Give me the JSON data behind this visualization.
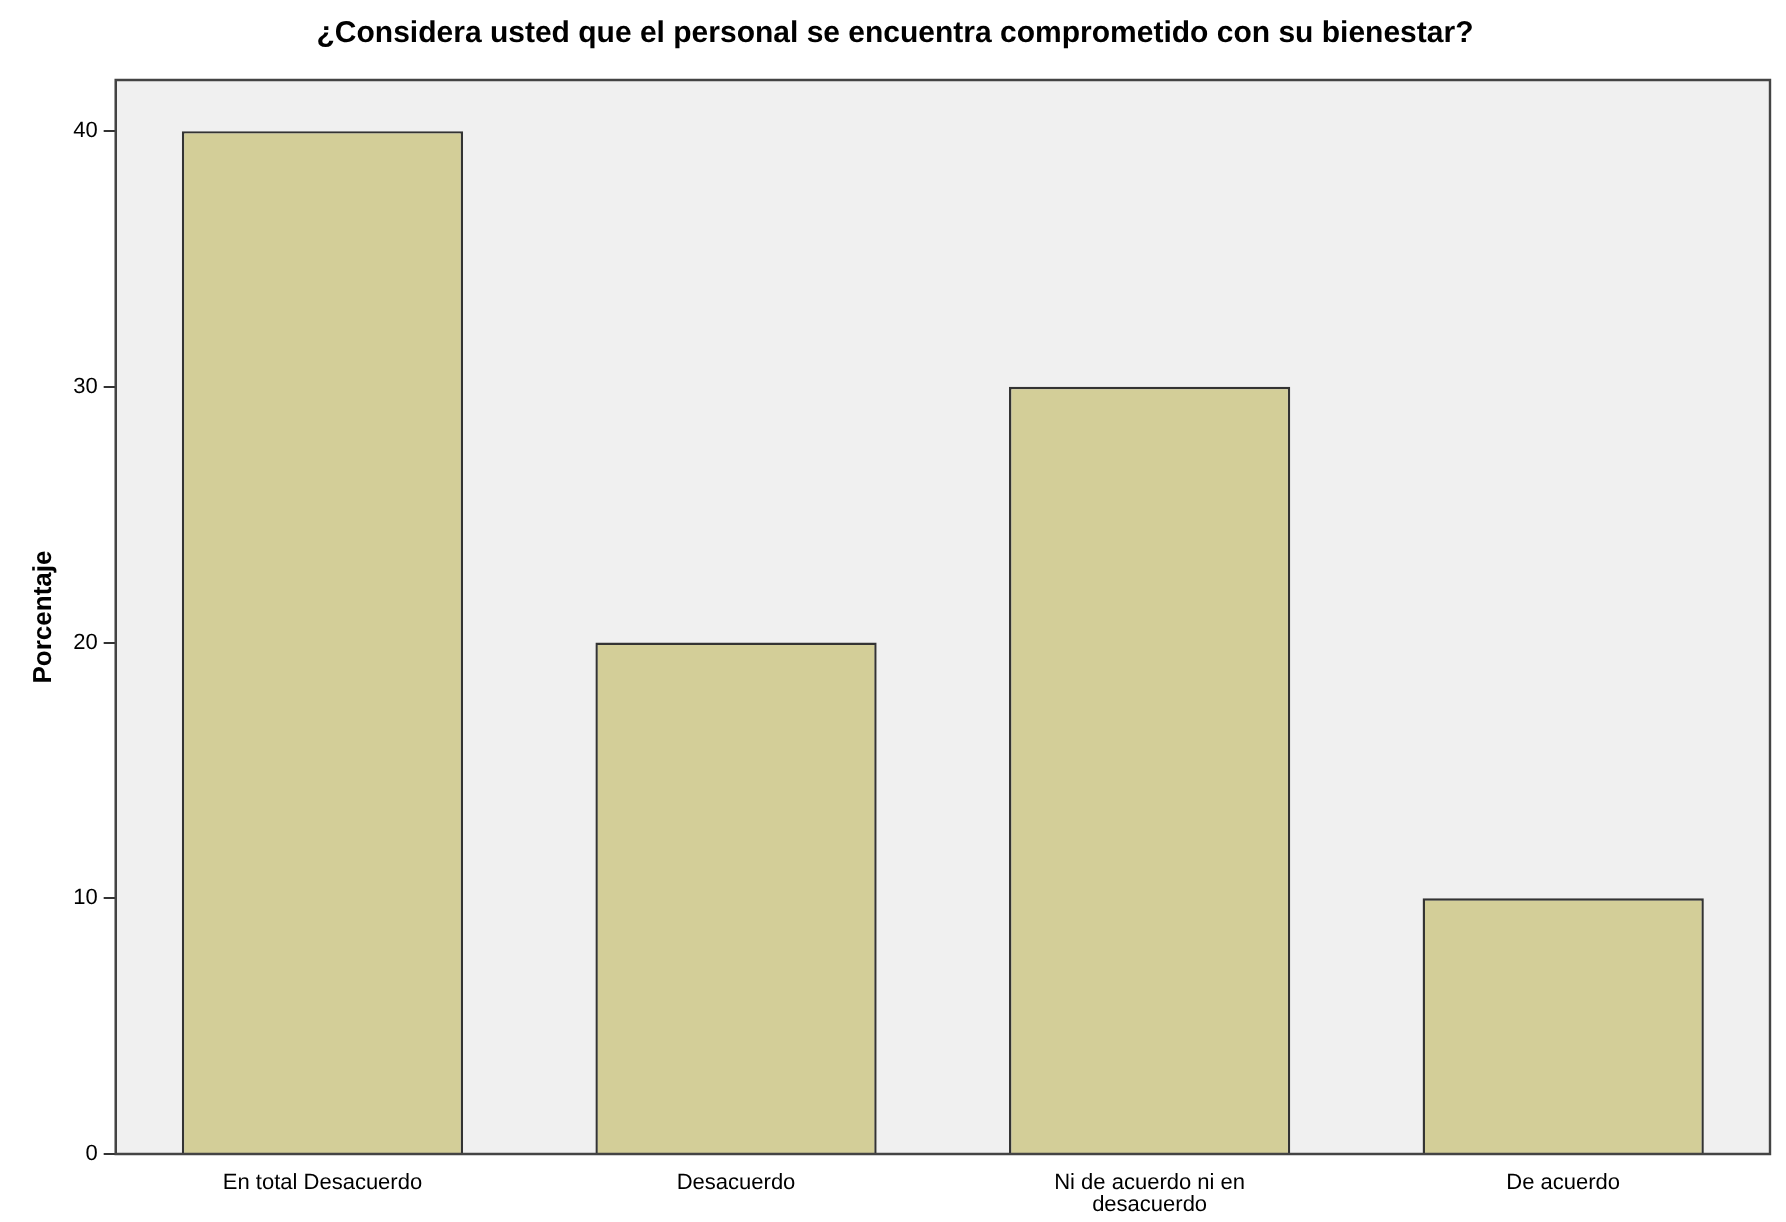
{
  "chart_data": {
    "type": "bar",
    "title": "¿Considera usted que el personal se encuentra comprometido con su bienestar?",
    "ylabel": "Porcentaje",
    "categories": [
      "En total Desacuerdo",
      "Desacuerdo",
      "Ni de acuerdo ni en desacuerdo",
      "De acuerdo"
    ],
    "values": [
      40,
      20,
      30,
      10
    ],
    "color": "#d3ce98",
    "ylim": [
      0,
      42
    ],
    "yticks": [
      0,
      10,
      20,
      30,
      40
    ],
    "grid": false,
    "legend": false
  }
}
